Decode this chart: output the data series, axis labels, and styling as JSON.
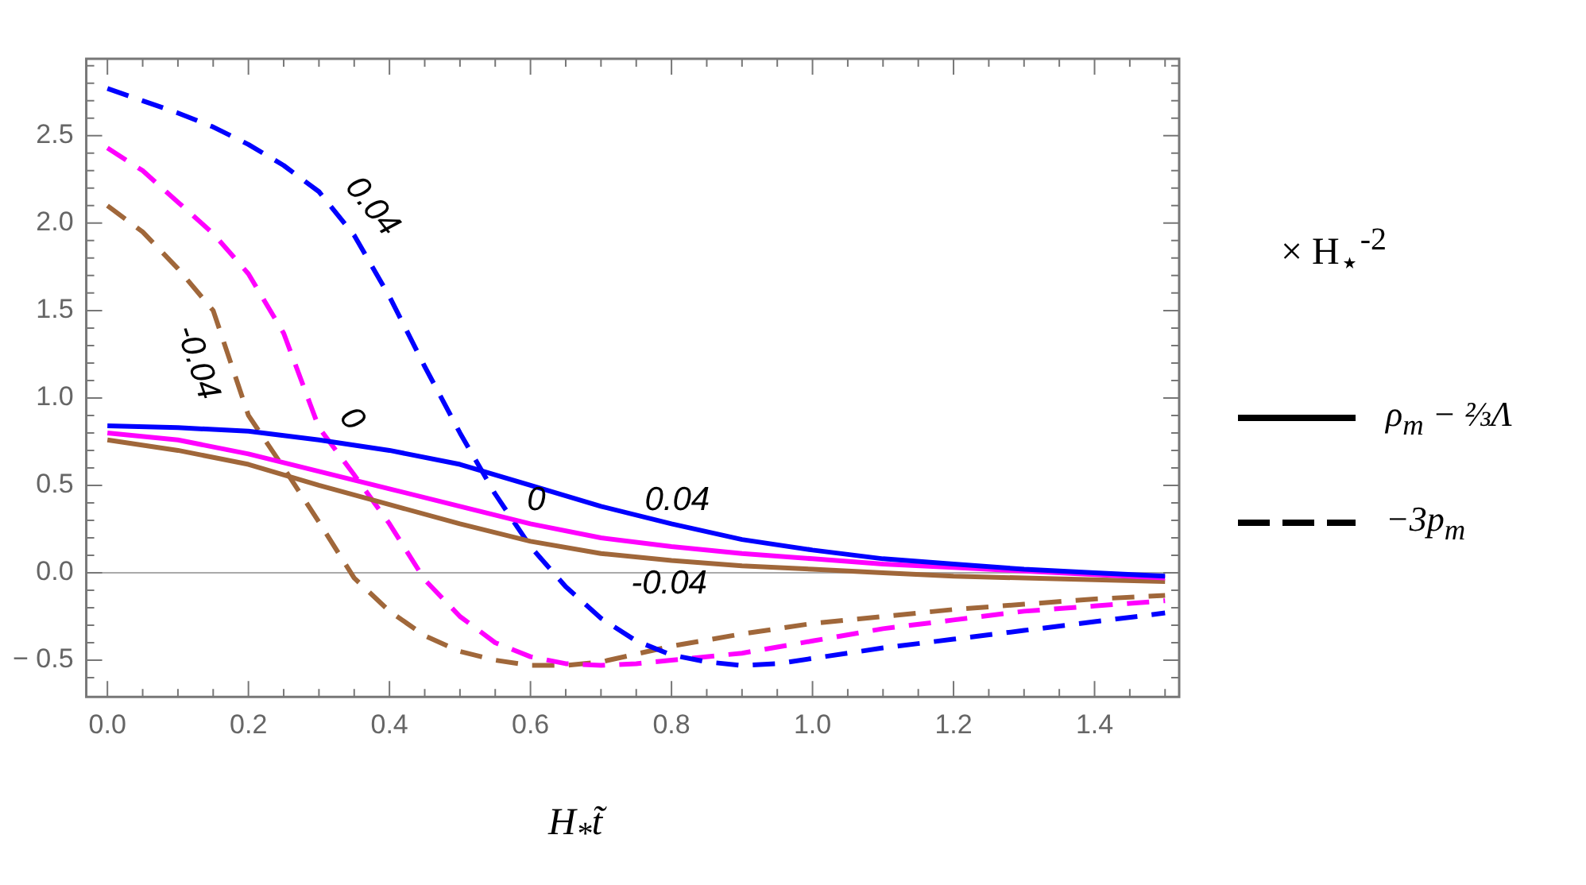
{
  "chart_data": {
    "type": "line",
    "title": "× H$_{⋆}$$^{-2}$",
    "xlabel": "H$_{*}$t̃",
    "xlim": [
      -0.03,
      1.52
    ],
    "ylim": [
      -0.71,
      2.94
    ],
    "xticks": [
      {
        "value": 0,
        "label": "0.0"
      },
      {
        "value": 0.05,
        "label": null
      },
      {
        "value": 0.1,
        "label": null
      },
      {
        "value": 0.15,
        "label": null
      },
      {
        "value": 0.2,
        "label": "0.2"
      },
      {
        "value": 0.25,
        "label": null
      },
      {
        "value": 0.3,
        "label": null
      },
      {
        "value": 0.35,
        "label": null
      },
      {
        "value": 0.4,
        "label": "0.4"
      },
      {
        "value": 0.45,
        "label": null
      },
      {
        "value": 0.5,
        "label": null
      },
      {
        "value": 0.55,
        "label": null
      },
      {
        "value": 0.6,
        "label": "0.6"
      },
      {
        "value": 0.65,
        "label": null
      },
      {
        "value": 0.7,
        "label": null
      },
      {
        "value": 0.75,
        "label": null
      },
      {
        "value": 0.8,
        "label": "0.8"
      },
      {
        "value": 0.85,
        "label": null
      },
      {
        "value": 0.9,
        "label": null
      },
      {
        "value": 0.95,
        "label": null
      },
      {
        "value": 1,
        "label": "1.0"
      },
      {
        "value": 1.05,
        "label": null
      },
      {
        "value": 1.1,
        "label": null
      },
      {
        "value": 1.15,
        "label": null
      },
      {
        "value": 1.2,
        "label": "1.2"
      },
      {
        "value": 1.25,
        "label": null
      },
      {
        "value": 1.3,
        "label": null
      },
      {
        "value": 1.35,
        "label": null
      },
      {
        "value": 1.4,
        "label": "1.4"
      },
      {
        "value": 1.45,
        "label": null
      },
      {
        "value": 1.5,
        "label": null
      }
    ],
    "yticks": [
      {
        "value": -0.6,
        "label": null
      },
      {
        "value": -0.5,
        "label": "− 0.5"
      },
      {
        "value": -0.4,
        "label": null
      },
      {
        "value": -0.3,
        "label": null
      },
      {
        "value": -0.2,
        "label": null
      },
      {
        "value": -0.1,
        "label": null
      },
      {
        "value": 0,
        "label": "0.0"
      },
      {
        "value": 0.1,
        "label": null
      },
      {
        "value": 0.2,
        "label": null
      },
      {
        "value": 0.3,
        "label": null
      },
      {
        "value": 0.4,
        "label": null
      },
      {
        "value": 0.5,
        "label": "0.5"
      },
      {
        "value": 0.6,
        "label": null
      },
      {
        "value": 0.7,
        "label": null
      },
      {
        "value": 0.8,
        "label": null
      },
      {
        "value": 0.9,
        "label": null
      },
      {
        "value": 1,
        "label": "1.0"
      },
      {
        "value": 1.1,
        "label": null
      },
      {
        "value": 1.2,
        "label": null
      },
      {
        "value": 1.3,
        "label": null
      },
      {
        "value": 1.4,
        "label": null
      },
      {
        "value": 1.5,
        "label": "1.5"
      },
      {
        "value": 1.6,
        "label": null
      },
      {
        "value": 1.7,
        "label": null
      },
      {
        "value": 1.8,
        "label": null
      },
      {
        "value": 1.9,
        "label": null
      },
      {
        "value": 2,
        "label": "2.0"
      },
      {
        "value": 2.1,
        "label": null
      },
      {
        "value": 2.2,
        "label": null
      },
      {
        "value": 2.3,
        "label": null
      },
      {
        "value": 2.4,
        "label": null
      },
      {
        "value": 2.5,
        "label": "2.5"
      },
      {
        "value": 2.6,
        "label": null
      },
      {
        "value": 2.7,
        "label": null
      },
      {
        "value": 2.8,
        "label": null
      },
      {
        "value": 2.9,
        "label": null
      }
    ],
    "ref_lines": [
      {
        "axis": "y",
        "value": 0,
        "color": "#aaaaaa"
      }
    ],
    "series": [
      {
        "color": "#0000ff",
        "line_style": "solid",
        "x": [
          0,
          0.1,
          0.2,
          0.3,
          0.4,
          0.5,
          0.6,
          0.7,
          0.8,
          0.9,
          1,
          1.1,
          1.2,
          1.3,
          1.4,
          1.5
        ],
        "values": [
          0.84,
          0.83,
          0.81,
          0.76,
          0.7,
          0.62,
          0.5,
          0.38,
          0.28,
          0.19,
          0.13,
          0.08,
          0.05,
          0.02,
          0,
          -0.02
        ]
      },
      {
        "color": "#ff00ff",
        "line_style": "solid",
        "x": [
          0,
          0.1,
          0.2,
          0.3,
          0.4,
          0.5,
          0.6,
          0.7,
          0.8,
          0.9,
          1,
          1.1,
          1.2,
          1.3,
          1.4,
          1.5
        ],
        "values": [
          0.8,
          0.76,
          0.68,
          0.58,
          0.48,
          0.38,
          0.28,
          0.2,
          0.15,
          0.11,
          0.08,
          0.05,
          0.03,
          0.01,
          -0.01,
          -0.03
        ]
      },
      {
        "color": "#a0673a",
        "line_style": "solid",
        "x": [
          0,
          0.1,
          0.2,
          0.3,
          0.4,
          0.5,
          0.6,
          0.7,
          0.8,
          0.9,
          1,
          1.1,
          1.2,
          1.3,
          1.4,
          1.5
        ],
        "values": [
          0.76,
          0.7,
          0.62,
          0.5,
          0.39,
          0.28,
          0.18,
          0.11,
          0.07,
          0.04,
          0.02,
          0,
          -0.02,
          -0.03,
          -0.04,
          -0.05
        ]
      },
      {
        "color": "#0000ff",
        "line_style": "dashed",
        "x": [
          0,
          0.05,
          0.1,
          0.15,
          0.2,
          0.25,
          0.3,
          0.35,
          0.4,
          0.45,
          0.5,
          0.55,
          0.6,
          0.65,
          0.7,
          0.75,
          0.8,
          0.85,
          0.9,
          0.95,
          1,
          1.1,
          1.2,
          1.3,
          1.4,
          1.5
        ],
        "values": [
          2.77,
          2.7,
          2.63,
          2.55,
          2.45,
          2.33,
          2.18,
          1.93,
          1.58,
          1.18,
          0.8,
          0.45,
          0.15,
          -0.08,
          -0.26,
          -0.39,
          -0.47,
          -0.51,
          -0.53,
          -0.52,
          -0.49,
          -0.43,
          -0.38,
          -0.33,
          -0.28,
          -0.23
        ]
      },
      {
        "color": "#ff00ff",
        "line_style": "dashed",
        "x": [
          0,
          0.05,
          0.1,
          0.15,
          0.2,
          0.25,
          0.3,
          0.35,
          0.4,
          0.45,
          0.5,
          0.55,
          0.6,
          0.65,
          0.7,
          0.75,
          0.8,
          0.9,
          1,
          1.1,
          1.2,
          1.3,
          1.4,
          1.5
        ],
        "values": [
          2.43,
          2.3,
          2.12,
          1.94,
          1.71,
          1.37,
          0.83,
          0.56,
          0.28,
          -0.04,
          -0.25,
          -0.4,
          -0.48,
          -0.52,
          -0.53,
          -0.52,
          -0.5,
          -0.46,
          -0.39,
          -0.32,
          -0.27,
          -0.22,
          -0.19,
          -0.16
        ]
      },
      {
        "color": "#a0673a",
        "line_style": "dashed",
        "x": [
          0,
          0.05,
          0.1,
          0.15,
          0.2,
          0.25,
          0.3,
          0.35,
          0.4,
          0.45,
          0.5,
          0.55,
          0.6,
          0.65,
          0.7,
          0.8,
          0.9,
          1,
          1.1,
          1.2,
          1.3,
          1.4,
          1.5
        ],
        "values": [
          2.1,
          1.95,
          1.74,
          1.5,
          0.9,
          0.6,
          0.29,
          -0.03,
          -0.22,
          -0.36,
          -0.45,
          -0.5,
          -0.53,
          -0.53,
          -0.51,
          -0.42,
          -0.35,
          -0.29,
          -0.25,
          -0.21,
          -0.18,
          -0.15,
          -0.13
        ]
      }
    ],
    "annotations": [
      {
        "text": "0.04",
        "x": 0.34,
        "y": 1.98
      },
      {
        "text": "-0.04",
        "x": 0.17,
        "y": 1.26
      },
      {
        "text": "0",
        "x": 0.31,
        "y": 0.77
      },
      {
        "text": "0.04",
        "x": 0.8,
        "y": 0.28
      },
      {
        "text": "0",
        "x": 0.6,
        "y": 0.28
      },
      {
        "text": "-0.04",
        "x": 0.8,
        "y": 0.07
      },
      "ρ$_{m}$ − ⅔Λ",
      "−3p$_{m}$"
    ]
  }
}
